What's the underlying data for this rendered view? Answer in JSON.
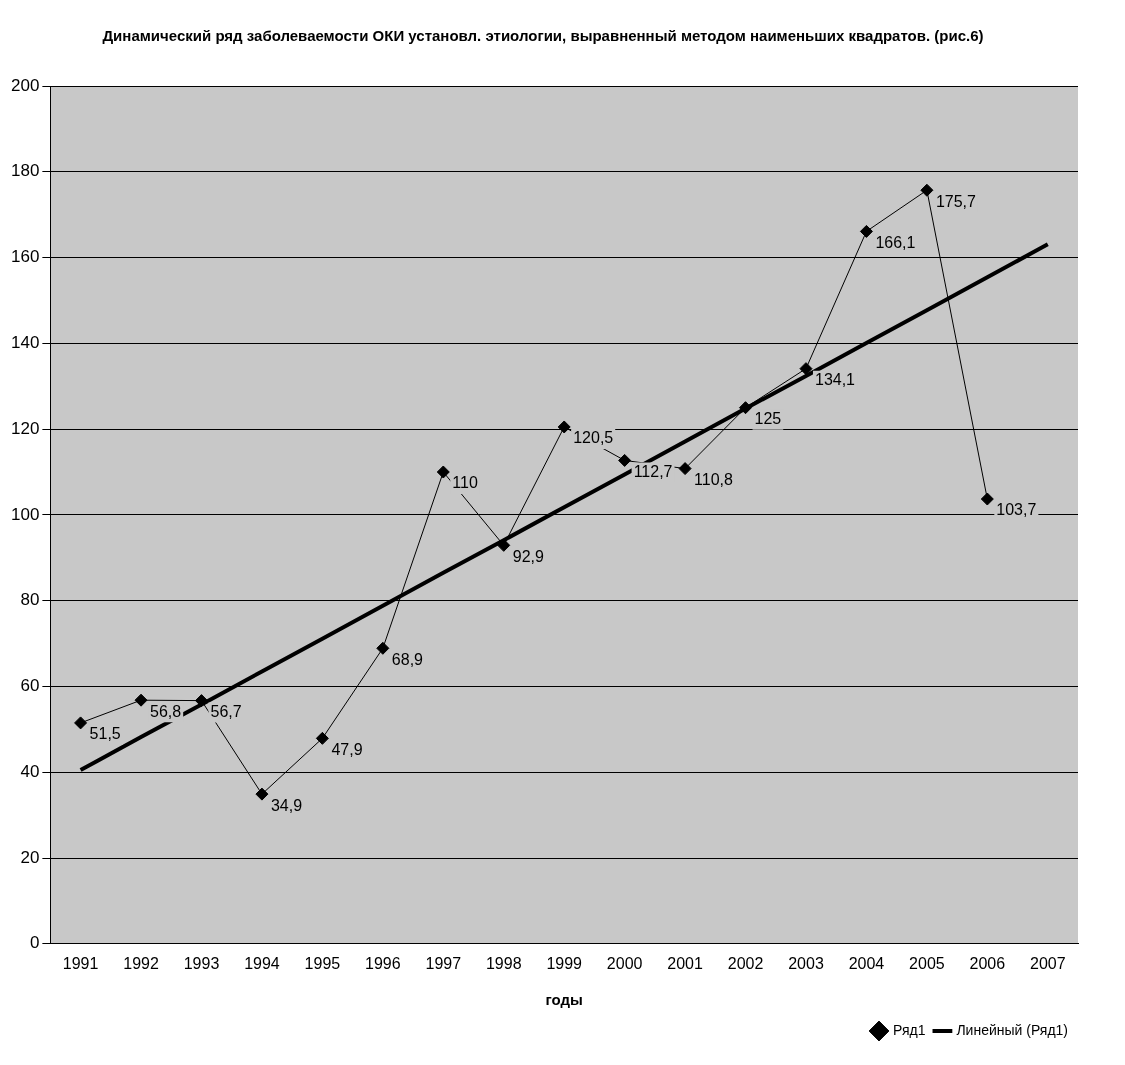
{
  "chart_data": {
    "type": "line",
    "title": "Динамический ряд заболеваемости ОКИ установл. этиологии, выравненный методом наименьших квадратов. (рис.6)",
    "xlabel": "годы",
    "categories": [
      "1991",
      "1992",
      "1993",
      "1994",
      "1995",
      "1996",
      "1997",
      "1998",
      "1999",
      "2000",
      "2001",
      "2002",
      "2003",
      "2004",
      "2005",
      "2006",
      "2007"
    ],
    "series": [
      {
        "name": "Ряд1",
        "color": "#000000",
        "values": [
          51.5,
          56.8,
          56.7,
          34.9,
          47.9,
          68.9,
          110,
          92.9,
          120.5,
          112.7,
          110.8,
          125,
          134.1,
          166.1,
          175.7,
          103.7,
          null
        ],
        "value_labels": [
          "51,5",
          "56,8",
          "56,7",
          "34,9",
          "47,9",
          "68,9",
          "110",
          "92,9",
          "120,5",
          "112,7",
          "110,8",
          "125",
          "134,1",
          "166,1",
          "175,7",
          "103,7",
          null
        ]
      },
      {
        "name": "Линейный (Ряд1)",
        "type": "line",
        "color": "#000000",
        "marker": "none",
        "values": [
          40.5,
          48.2,
          55.8,
          63.5,
          71.1,
          78.8,
          86.5,
          94.1,
          101.8,
          109.4,
          117.1,
          124.8,
          132.4,
          140.1,
          147.7,
          155.4,
          163.1
        ]
      }
    ],
    "ylim": [
      0,
      200
    ],
    "yticks": [
      0,
      20,
      40,
      60,
      80,
      100,
      120,
      140,
      160,
      180,
      200
    ],
    "grid": "y",
    "legend": "bottom right",
    "marker": "diamond",
    "line_style": "solid"
  }
}
